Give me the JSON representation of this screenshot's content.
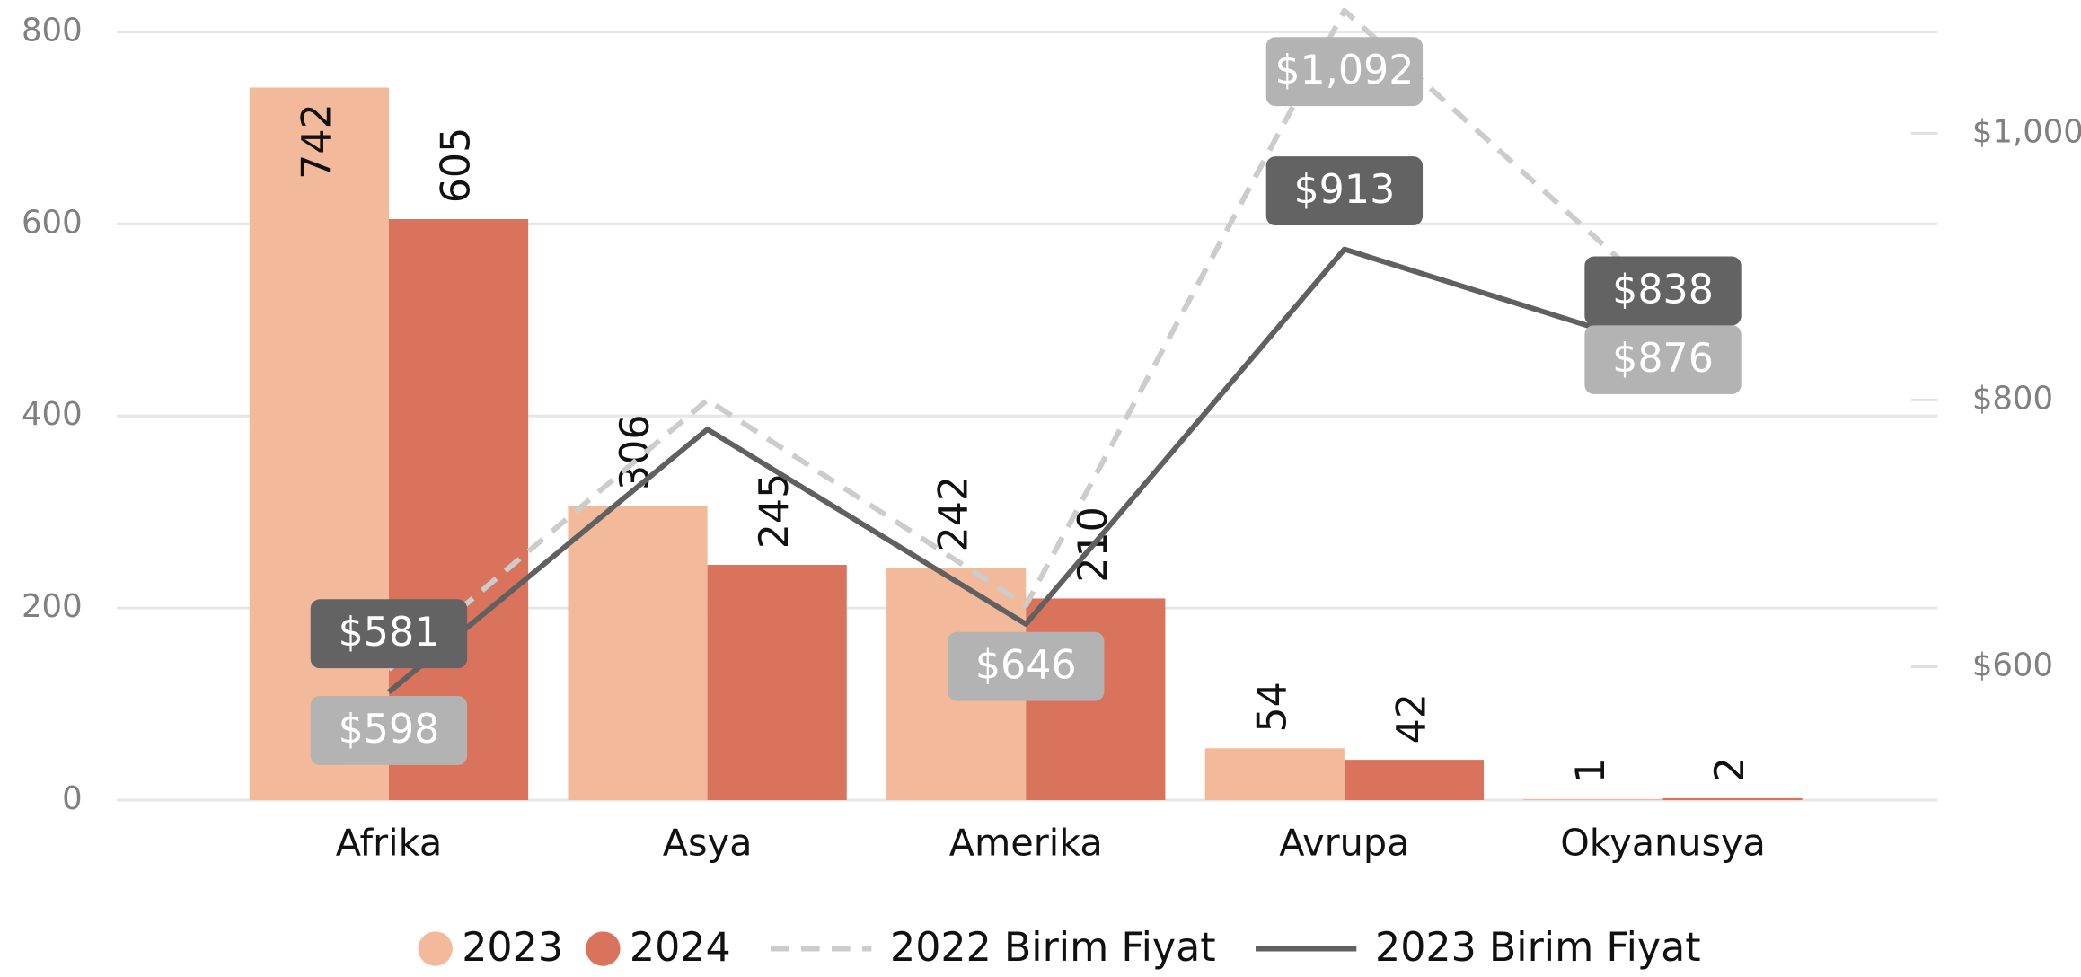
{
  "chart_data": {
    "type": "bar",
    "categories": [
      "Afrika",
      "Asya",
      "Amerika",
      "Avrupa",
      "Okyanusya"
    ],
    "series": [
      {
        "name": "2023",
        "type": "bar",
        "color": "#f2b99a",
        "values": [
          742,
          306,
          242,
          54,
          1
        ]
      },
      {
        "name": "2024",
        "type": "bar",
        "color": "#d9735c",
        "values": [
          605,
          245,
          210,
          42,
          2
        ]
      },
      {
        "name": "2022 Birim Fiyat",
        "type": "line",
        "axis": "y2",
        "color": "#cccccc",
        "dashed": true,
        "label_color": "#b3b3b3",
        "values": [
          598,
          800,
          646,
          1092,
          876
        ],
        "value_labels": [
          "$598",
          null,
          "$646",
          "$1,092",
          "$876"
        ]
      },
      {
        "name": "2023 Birim Fiyat",
        "type": "line",
        "axis": "y2",
        "color": "#606060",
        "dashed": false,
        "label_color": "#636363",
        "values": [
          581,
          778,
          632,
          913,
          838
        ],
        "value_labels": [
          "$581",
          null,
          null,
          "$913",
          "$838"
        ]
      }
    ],
    "ylim": [
      0,
      800
    ],
    "yticks": [
      0,
      200,
      400,
      600,
      800
    ],
    "y2lim": [
      500,
      1076
    ],
    "y2ticks": [
      {
        "value": 600,
        "label": "$600"
      },
      {
        "value": 800,
        "label": "$800"
      },
      {
        "value": 1000,
        "label": "$1,000"
      }
    ],
    "grid": true,
    "legend": "bottom"
  }
}
